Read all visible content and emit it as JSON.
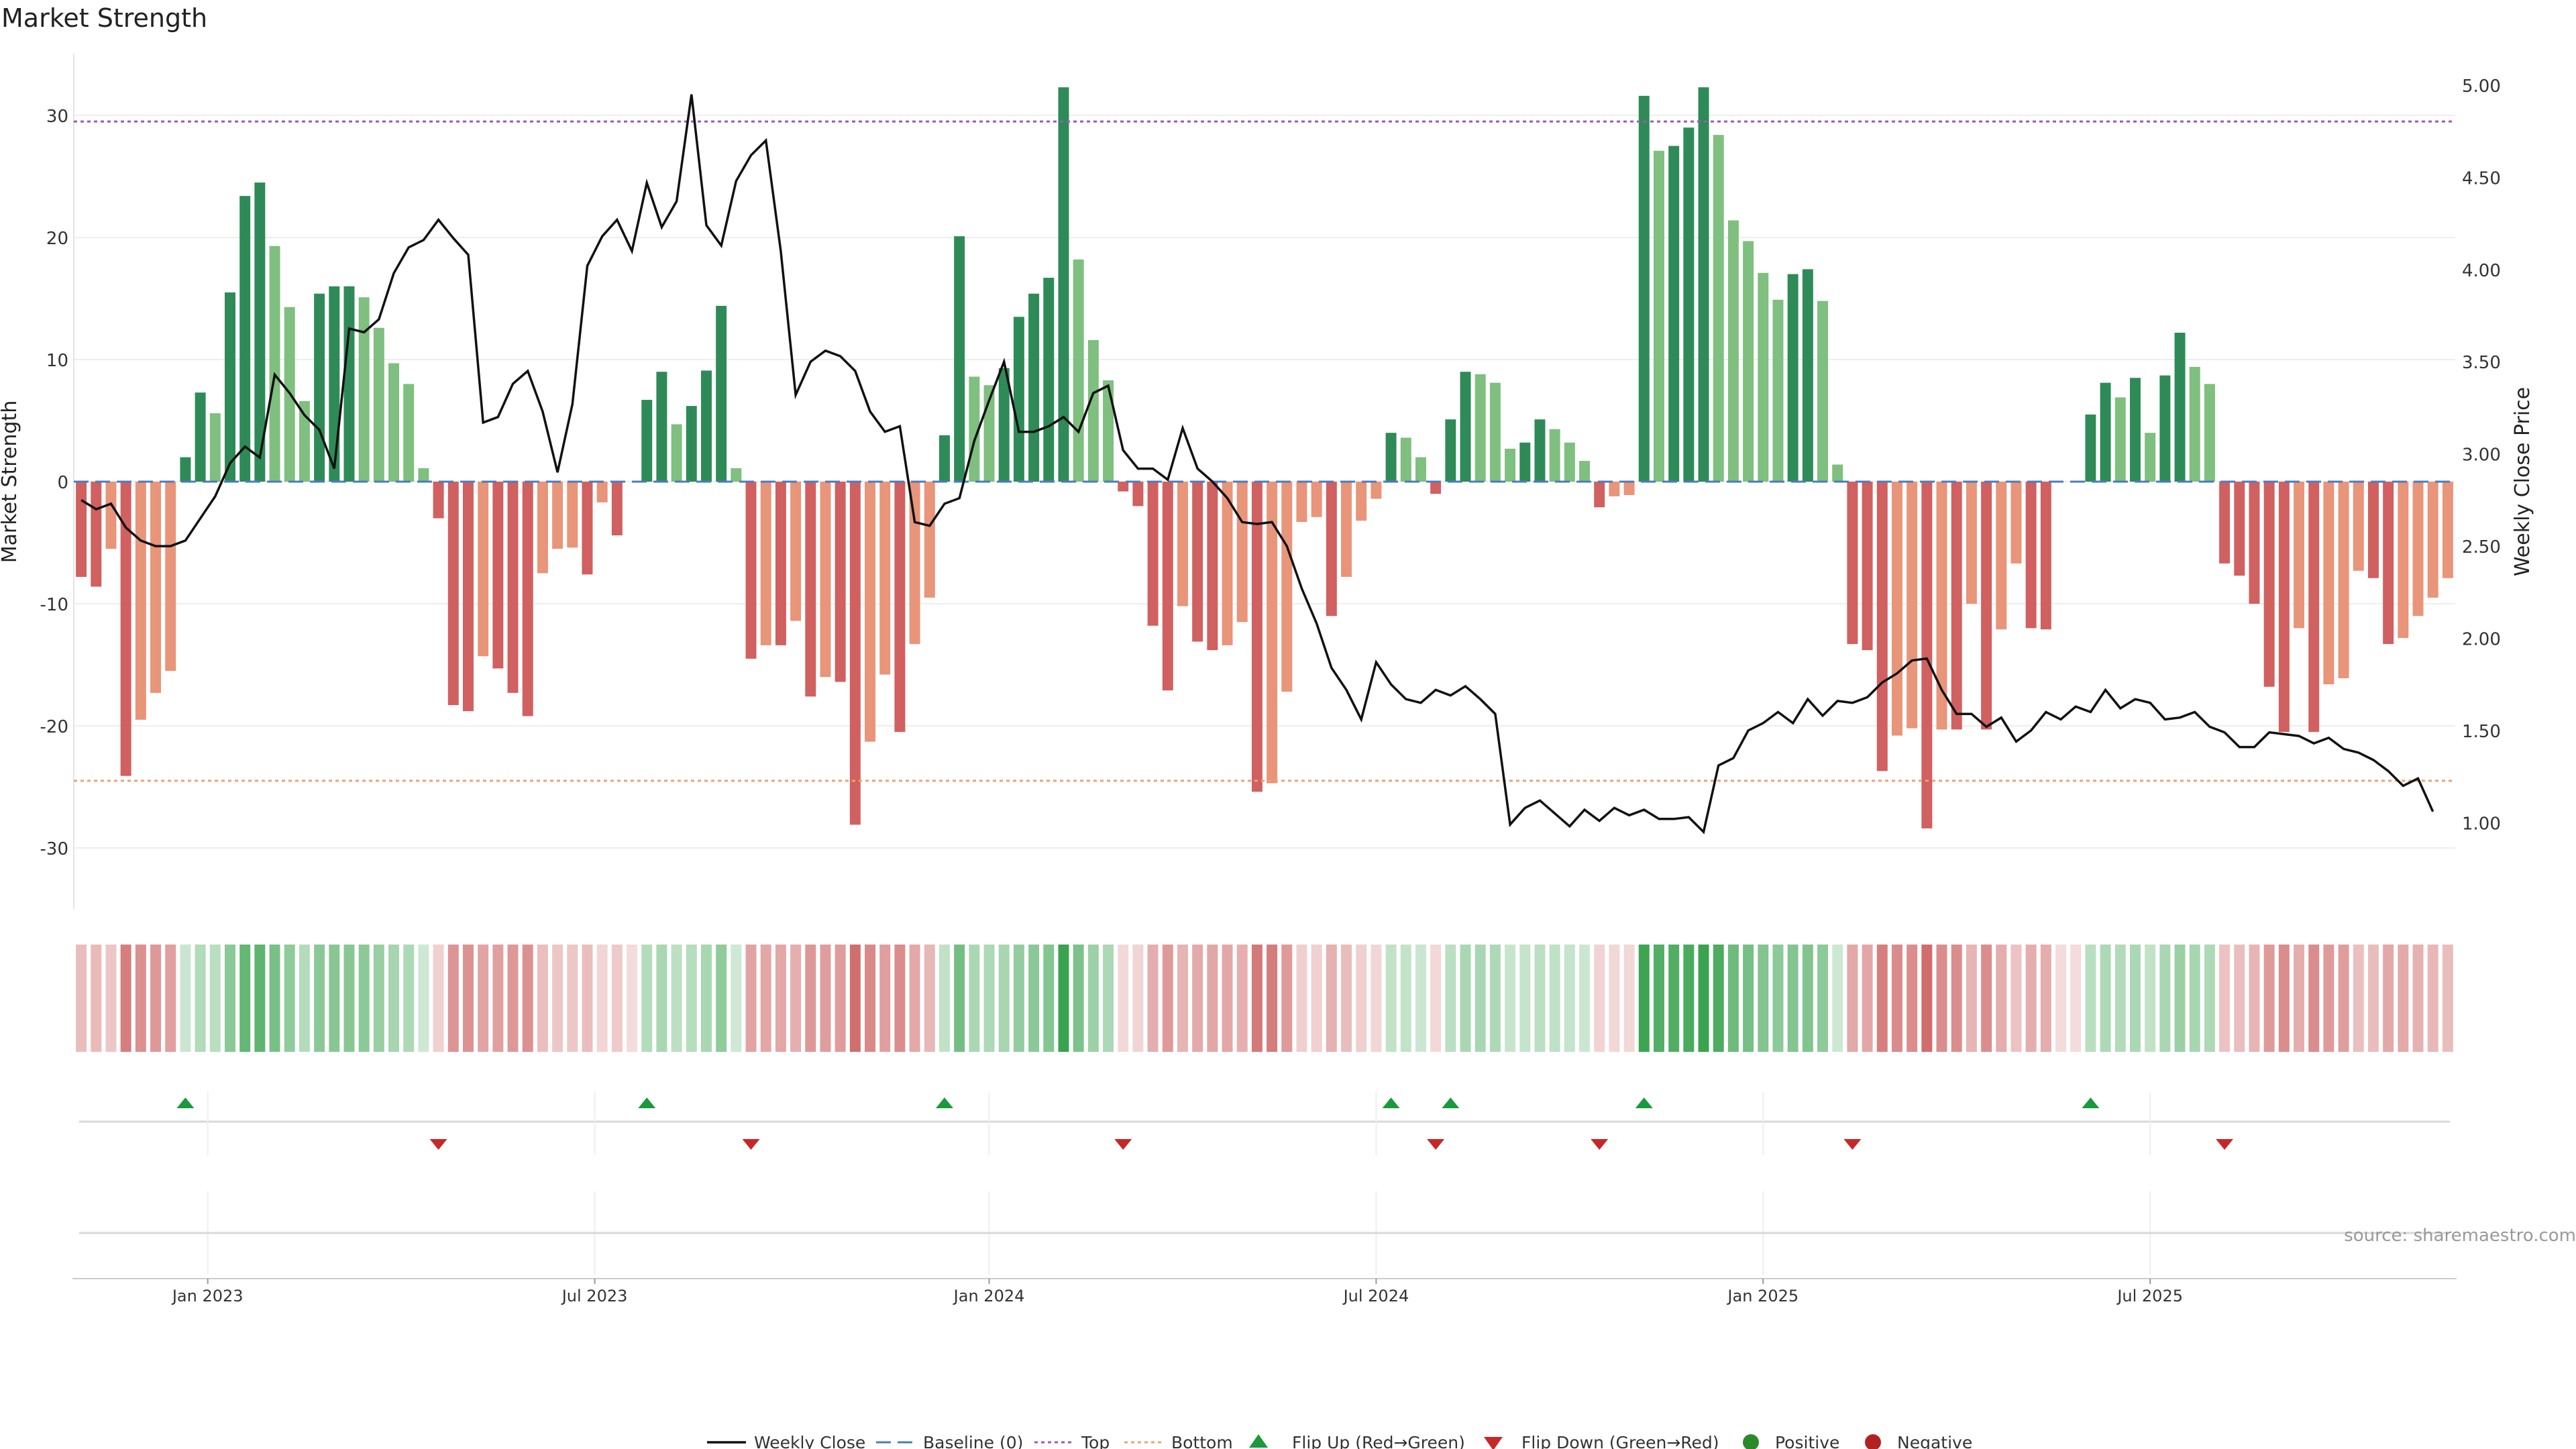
{
  "chart_data": {
    "type": "bar",
    "title": "Market Strength",
    "ylabel_left": "Market Strength",
    "ylabel_right": "Weekly Close Price",
    "source": "source: sharemaestro.com",
    "ylim_left": [
      -35,
      35
    ],
    "ylim_right": [
      0.55,
      5.2
    ],
    "yticks_left": [
      30,
      20,
      10,
      0,
      -10,
      -20,
      -30
    ],
    "yticks_right": [
      "5.00",
      "4.50",
      "4.00",
      "3.50",
      "3.00",
      "2.50",
      "2.00",
      "1.50",
      "1.00"
    ],
    "top_line": 29.5,
    "bottom_line": -24.5,
    "x_ticks": [
      {
        "label": "Jan 2023",
        "week": 9
      },
      {
        "label": "Jul 2023",
        "week": 35
      },
      {
        "label": "Jan 2024",
        "week": 61.5
      },
      {
        "label": "Jul 2024",
        "week": 87.5
      },
      {
        "label": "Jan 2025",
        "week": 113.5
      },
      {
        "label": "Jul 2025",
        "week": 139.5
      }
    ],
    "strength": [
      -7.8,
      -8.6,
      -5.5,
      -24.1,
      -19.5,
      -17.3,
      -15.5,
      2,
      7.3,
      5.6,
      15.5,
      23.4,
      24.5,
      19.3,
      14.3,
      6.6,
      15.4,
      16,
      16,
      15.1,
      12.6,
      9.7,
      8,
      1.1,
      -3,
      -18.3,
      -18.8,
      -14.3,
      -15.3,
      -17.3,
      -19.2,
      -7.5,
      -5.5,
      -5.4,
      -7.6,
      -1.7,
      -4.4,
      0,
      6.7,
      9,
      4.7,
      6.2,
      9.1,
      14.4,
      1.1,
      -14.5,
      -13.4,
      -13.4,
      -11.4,
      -17.6,
      -16,
      -16.4,
      -28.1,
      -21.3,
      -15.8,
      -20.5,
      -13.3,
      -9.5,
      3.8,
      20.1,
      8.6,
      7.9,
      9.3,
      13.5,
      15.4,
      16.7,
      32.3,
      18.2,
      11.6,
      8.3,
      -0.8,
      -2,
      -11.8,
      -17.1,
      -10.2,
      -13.1,
      -13.8,
      -13.4,
      -11.5,
      -25.4,
      -24.7,
      -17.2,
      -3.3,
      -2.9,
      -11,
      -7.8,
      -3.2,
      -1.4,
      4,
      3.6,
      2,
      -1,
      5.1,
      9,
      8.8,
      8.1,
      2.7,
      3.2,
      5.1,
      4.3,
      3.2,
      1.7,
      -2.1,
      -1.2,
      -1.1,
      31.6,
      27.1,
      27.5,
      29,
      32.3,
      28.4,
      21.4,
      19.7,
      17.1,
      14.9,
      17,
      17.4,
      14.8,
      1.4,
      -13.3,
      -13.8,
      -23.7,
      -20.8,
      -20.2,
      -28.4,
      -20.3,
      -20.3,
      -10,
      -20.3,
      -12.1,
      -6.7,
      -12,
      -12.1,
      0,
      0,
      5.5,
      8.1,
      6.9,
      8.5,
      4,
      8.7,
      12.2,
      9.4,
      8,
      -6.7,
      -7.7,
      -10,
      -16.8,
      -20.5,
      -12,
      -20.5,
      -16.6,
      -16.1,
      -7.3,
      -7.9,
      -13.3,
      -12.8,
      -11,
      -9.5,
      -7.9
    ],
    "weekly_close": [
      2.75,
      2.7,
      2.73,
      2.6,
      2.53,
      2.5,
      2.5,
      2.53,
      2.65,
      2.77,
      2.95,
      3.04,
      2.98,
      3.43,
      3.33,
      3.21,
      3.13,
      2.92,
      3.68,
      3.66,
      3.73,
      3.98,
      4.12,
      4.16,
      4.27,
      4.17,
      4.08,
      3.17,
      3.2,
      3.38,
      3.45,
      3.23,
      2.9,
      3.27,
      4.02,
      4.18,
      4.27,
      4.1,
      4.47,
      4.23,
      4.37,
      4.95,
      4.24,
      4.13,
      4.48,
      4.62,
      4.7,
      4.1,
      3.32,
      3.5,
      3.56,
      3.53,
      3.45,
      3.23,
      3.12,
      3.15,
      2.63,
      2.61,
      2.73,
      2.76,
      3.07,
      3.29,
      3.5,
      3.12,
      3.12,
      3.15,
      3.2,
      3.12,
      3.33,
      3.37,
      3.02,
      2.92,
      2.92,
      2.86,
      3.14,
      2.92,
      2.85,
      2.76,
      2.63,
      2.62,
      2.63,
      2.5,
      2.27,
      2.08,
      1.84,
      1.72,
      1.56,
      1.87,
      1.75,
      1.67,
      1.65,
      1.72,
      1.69,
      1.74,
      1.67,
      1.59,
      0.99,
      1.08,
      1.12,
      1.05,
      0.98,
      1.07,
      1.01,
      1.08,
      1.04,
      1.07,
      1.02,
      1.02,
      1.03,
      0.95,
      1.31,
      1.35,
      1.5,
      1.54,
      1.6,
      1.54,
      1.67,
      1.58,
      1.66,
      1.65,
      1.68,
      1.76,
      1.81,
      1.88,
      1.89,
      1.72,
      1.59,
      1.59,
      1.52,
      1.57,
      1.44,
      1.5,
      1.6,
      1.56,
      1.63,
      1.6,
      1.72,
      1.62,
      1.67,
      1.65,
      1.56,
      1.57,
      1.6,
      1.52,
      1.49,
      1.41,
      1.41,
      1.49,
      1.48,
      1.47,
      1.43,
      1.46,
      1.4,
      1.38,
      1.34,
      1.28,
      1.2,
      1.24,
      1.06
    ]
  },
  "legend": {
    "weekly_close": "Weekly Close",
    "baseline": "Baseline (0)",
    "top": "Top",
    "bottom": "Bottom",
    "flip_up": "Flip Up (Red→Green)",
    "flip_down": "Flip Down (Green→Red)",
    "positive": "Positive",
    "negative": "Negative"
  },
  "colors": {
    "pos_dark": "#2e8b57",
    "pos_light": "#7fbf7f",
    "neg_dark": "#d16060",
    "neg_light": "#e8957a",
    "price_line": "#111111",
    "baseline": "#4a7cc0",
    "top": "#9b59b6",
    "bottom": "#f0a070",
    "flip_up": "#1a9a3c",
    "flip_down": "#c62828",
    "positive_dot": "#2a8a2a",
    "negative_dot": "#b22222"
  }
}
